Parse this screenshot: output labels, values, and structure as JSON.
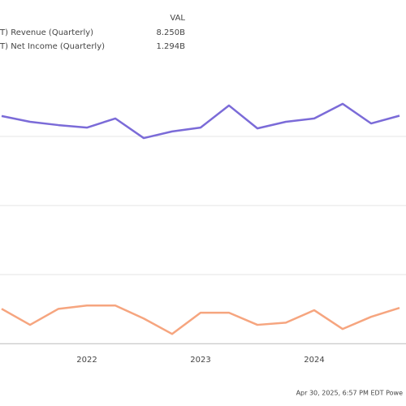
{
  "chart_data": {
    "type": "line",
    "legend_header": "VAL",
    "categories": [
      null,
      null,
      null,
      "2022",
      null,
      null,
      null,
      "2023",
      null,
      null,
      null,
      "2024",
      null,
      null,
      null
    ],
    "series": [
      {
        "name": "T) Revenue (Quarterly)",
        "color": "#7b6bd8",
        "legend_value": "8.250B",
        "values": [
          8.24,
          8.03,
          7.91,
          7.82,
          8.15,
          7.44,
          7.68,
          7.82,
          8.62,
          7.79,
          8.03,
          8.15,
          8.68,
          7.97,
          8.25
        ]
      },
      {
        "name": "T) Net Income (Quarterly)",
        "color": "#f6a57f",
        "legend_value": "1.294B",
        "values": [
          1.26,
          0.68,
          1.26,
          1.38,
          1.38,
          0.91,
          0.35,
          1.12,
          1.12,
          0.68,
          0.76,
          1.21,
          0.53,
          0.97,
          1.294
        ]
      }
    ],
    "ylim": [
      -0.2,
      9.94
    ],
    "yticks": [
      0,
      2.5,
      5,
      7.5
    ],
    "grid": true,
    "footer": "Apr 30, 2025, 6:57 PM EDT  Powe"
  }
}
